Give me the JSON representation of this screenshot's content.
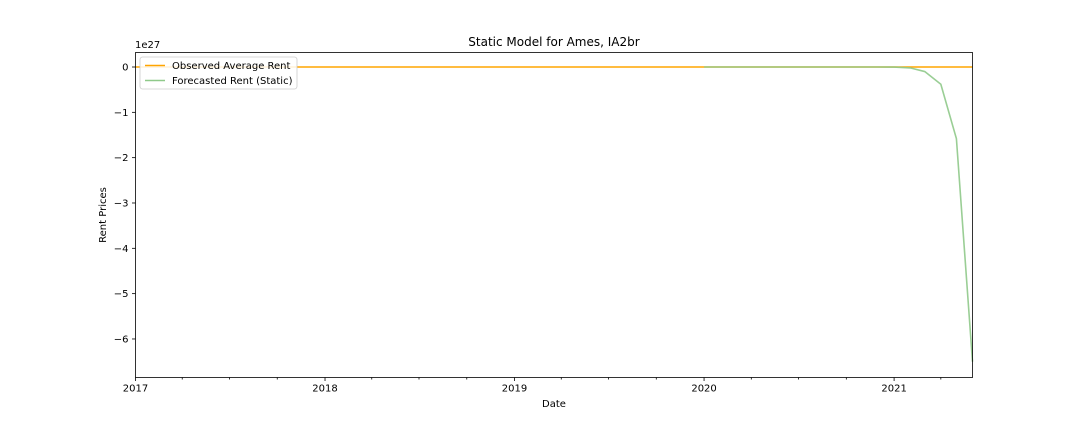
{
  "chart_data": {
    "type": "line",
    "title": "Static Model for Ames, IA2br",
    "xlabel": "Date",
    "ylabel": "Rent Prices",
    "y_offset_label": "1e27",
    "y_scale_multiplier": 1e+27,
    "xlim": [
      "2017-01-01",
      "2021-06-01"
    ],
    "ylim": [
      -6.85,
      0.32
    ],
    "x_major_ticks": [
      "2017",
      "2018",
      "2019",
      "2020",
      "2021"
    ],
    "y_ticks": [
      0,
      -1,
      -2,
      -3,
      -4,
      -5,
      -6
    ],
    "y_tick_labels": [
      "0",
      "−1",
      "−2",
      "−3",
      "−4",
      "−5",
      "−6"
    ],
    "grid": false,
    "legend_position": "upper-left",
    "series": [
      {
        "name": "Observed Average Rent",
        "color": "#ffa500",
        "x": [
          "2017-01-01",
          "2021-06-01"
        ],
        "y": [
          0,
          0
        ]
      },
      {
        "name": "Forecasted Rent (Static)",
        "color": "#8fc98a",
        "x": [
          "2020-01-01",
          "2020-02-01",
          "2020-03-01",
          "2020-04-01",
          "2020-05-01",
          "2020-06-01",
          "2020-07-01",
          "2020-08-01",
          "2020-09-01",
          "2020-10-01",
          "2020-11-01",
          "2020-12-01",
          "2021-01-01",
          "2021-02-01",
          "2021-03-01",
          "2021-04-01",
          "2021-05-01",
          "2021-06-01"
        ],
        "y": [
          0,
          0,
          0,
          0,
          0,
          0,
          0,
          0,
          0,
          0,
          0,
          0,
          -0.002,
          -0.02,
          -0.1,
          -0.38,
          -1.58,
          -6.5
        ]
      }
    ]
  }
}
